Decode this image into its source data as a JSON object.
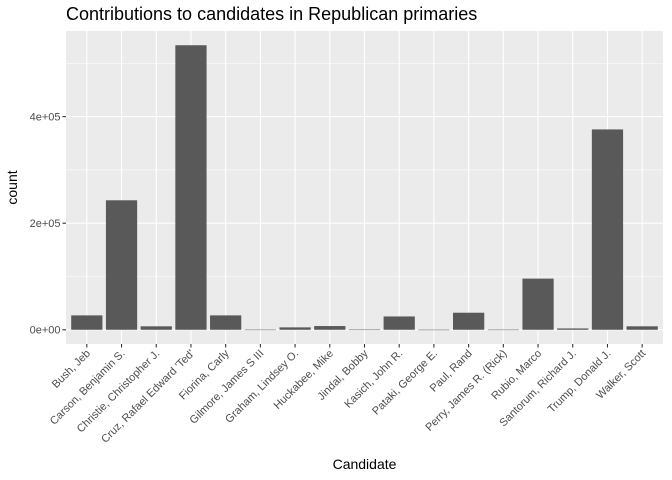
{
  "chart_data": {
    "type": "bar",
    "title": "Contributions to candidates in Republican primaries",
    "xlabel": "Candidate",
    "ylabel": "count",
    "categories": [
      "Bush, Jeb",
      "Carson, Benjamin S.",
      "Christie, Christopher J.",
      "Cruz, Rafael Edward 'Ted'",
      "Fiorina, Carly",
      "Gilmore, James S III",
      "Graham, Lindsey O.",
      "Huckabee, Mike",
      "Jindal, Bobby",
      "Kasich, John R.",
      "Pataki, George E.",
      "Paul, Rand",
      "Perry, James R. (Rick)",
      "Rubio, Marco",
      "Santorum, Richard J.",
      "Trump, Donald J.",
      "Walker, Scott"
    ],
    "values": [
      27000,
      243000,
      6500,
      534000,
      27000,
      300,
      4500,
      7000,
      400,
      25000,
      200,
      32000,
      300,
      96000,
      2500,
      376000,
      6500
    ],
    "yticks": [
      0,
      200000,
      400000
    ],
    "ytick_labels": [
      "0e+00",
      "2e+05",
      "4e+05"
    ],
    "ylim": [
      -26700,
      560700
    ],
    "grid": true,
    "legend": "none",
    "colors": {
      "bar": "#595959",
      "panel": "#ebebeb",
      "grid_major": "#ffffff",
      "tick_text": "#4d4d4d",
      "tick_mark": "#333333"
    }
  }
}
